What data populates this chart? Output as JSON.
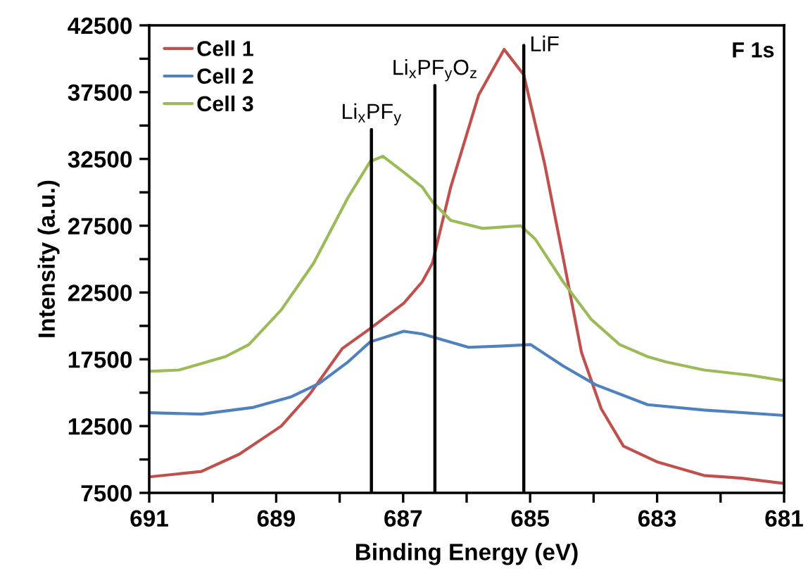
{
  "chart_data": {
    "type": "line",
    "xlabel": "Binding Energy (eV)",
    "ylabel": "Intensity (a.u.)",
    "xlim": [
      691,
      681
    ],
    "xticks": [
      691,
      {
        "value": 690,
        "label": null
      },
      689,
      {
        "value": 688,
        "label": null
      },
      687,
      {
        "value": 686,
        "label": null
      },
      685,
      {
        "value": 684,
        "label": null
      },
      683,
      {
        "value": 682,
        "label": null
      },
      681
    ],
    "ylim": [
      7500,
      42500
    ],
    "yticks": [
      7500,
      {
        "value": 10000,
        "label": null
      },
      12500,
      {
        "value": 15000,
        "label": null
      },
      17500,
      {
        "value": 20000,
        "label": null
      },
      22500,
      {
        "value": 25000,
        "label": null
      },
      27500,
      {
        "value": 30000,
        "label": null
      },
      32500,
      {
        "value": 35000,
        "label": null
      },
      37500,
      {
        "value": 40000,
        "label": null
      },
      42500
    ],
    "grid": false,
    "legend": "top left",
    "marker": "none",
    "line_style": "solid",
    "series": [
      {
        "name": "Cell 1",
        "color": "#c0504d",
        "x": [
          691,
          690.18,
          689.58,
          688.92,
          688.47,
          687.96,
          687.52,
          686.99,
          686.7,
          686.54,
          686.25,
          685.81,
          685.41,
          685.1,
          684.77,
          684.48,
          684.19,
          683.88,
          683.53,
          682.99,
          682.26,
          681.67,
          681
        ],
        "values": [
          8700,
          9100,
          10400,
          12500,
          14900,
          18300,
          19800,
          21700,
          23300,
          24700,
          30400,
          37300,
          40700,
          38800,
          32100,
          25100,
          18000,
          13800,
          11000,
          9800,
          8800,
          8600,
          8200
        ]
      },
      {
        "name": "Cell 2",
        "color": "#4f81bd",
        "x": [
          691,
          690.18,
          689.36,
          688.76,
          688.32,
          687.87,
          687.52,
          686.99,
          686.7,
          686.48,
          685.97,
          685.43,
          684.99,
          684.48,
          683.97,
          683.15,
          682.26,
          681
        ],
        "values": [
          13500,
          13400,
          13900,
          14700,
          15700,
          17300,
          18800,
          19600,
          19400,
          19100,
          18400,
          18500,
          18600,
          17000,
          15600,
          14100,
          13700,
          13300
        ]
      },
      {
        "name": "Cell 3",
        "color": "#9bbb59",
        "x": [
          691,
          690.53,
          689.8,
          689.43,
          688.92,
          688.41,
          687.87,
          687.52,
          687.32,
          686.99,
          686.7,
          686.54,
          686.25,
          685.75,
          685.15,
          684.92,
          684.48,
          684.04,
          683.59,
          683.15,
          682.86,
          682.26,
          681.53,
          681
        ],
        "values": [
          16600,
          16700,
          17700,
          18600,
          21200,
          24700,
          29600,
          32300,
          32700,
          31500,
          30400,
          29300,
          27900,
          27300,
          27500,
          26500,
          23300,
          20500,
          18600,
          17700,
          17300,
          16700,
          16300,
          15900
        ]
      },
      {
        "type": "line",
        "color": "#000000",
        "x": [
          687.5,
          687.5
        ],
        "values": [
          7500,
          34700
        ]
      },
      {
        "type": "line",
        "color": "#000000",
        "x": [
          686.5,
          686.5
        ],
        "values": [
          7500,
          38000
        ]
      },
      {
        "type": "line",
        "color": "#000000",
        "x": [
          685.1,
          685.1
        ],
        "values": [
          7500,
          41000
        ]
      }
    ],
    "annotations": [
      {
        "text": "Li$_{x}$PF$_{y}$",
        "x": 687.5,
        "y": 34700
      },
      {
        "text": "Li$_{x}$PF$_{y}$O$_{z}$",
        "x": 686.5,
        "y": 38000
      },
      {
        "text": "LiF",
        "x": 685.1,
        "y": 41000
      },
      "F 1s"
    ]
  }
}
